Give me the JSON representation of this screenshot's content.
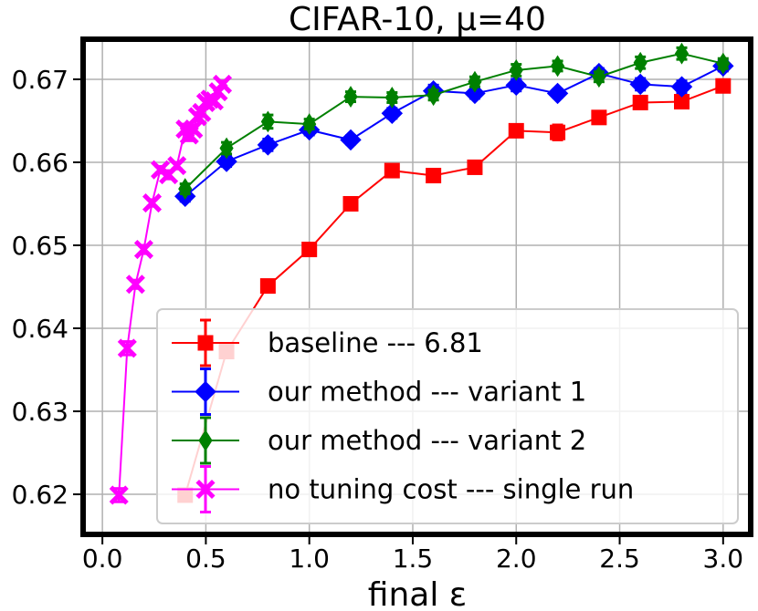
{
  "chart_data": {
    "type": "line",
    "title": "CIFAR-10, μ=40",
    "xlabel": "final ε",
    "ylabel": "",
    "xlim": [
      -0.08,
      3.12
    ],
    "ylim": [
      0.6155,
      0.6745
    ],
    "xticks": [
      "0.0",
      "0.5",
      "1.0",
      "1.5",
      "2.0",
      "2.5",
      "3.0"
    ],
    "xtick_values": [
      0.0,
      0.5,
      1.0,
      1.5,
      2.0,
      2.5,
      3.0
    ],
    "yticks": [
      "0.62",
      "0.63",
      "0.64",
      "0.65",
      "0.66",
      "0.67"
    ],
    "ytick_values": [
      0.62,
      0.63,
      0.64,
      0.65,
      0.66,
      0.67
    ],
    "grid": true,
    "legend_position": "lower-right",
    "series": [
      {
        "name": "baseline --- 6.81",
        "color": "#ff0000",
        "marker": "square",
        "x": [
          0.4,
          0.6,
          0.8,
          1.0,
          1.2,
          1.4,
          1.6,
          1.8,
          2.0,
          2.2,
          2.4,
          2.6,
          2.8,
          3.0
        ],
        "y": [
          0.6199,
          0.6372,
          0.6451,
          0.6495,
          0.655,
          0.659,
          0.6584,
          0.6594,
          0.6638,
          0.6636,
          0.6654,
          0.6672,
          0.6673,
          0.6692
        ],
        "err": [
          0.0007,
          0.0007,
          0.0006,
          0.0006,
          0.0005,
          0.0005,
          0.0006,
          0.0005,
          0.0007,
          0.0009,
          0.0007,
          0.0007,
          0.0007,
          0.0006
        ]
      },
      {
        "name": "our method --- variant 1",
        "color": "#0000ff",
        "marker": "diamond",
        "x": [
          0.4,
          0.6,
          0.8,
          1.0,
          1.2,
          1.4,
          1.6,
          1.8,
          2.0,
          2.2,
          2.4,
          2.6,
          2.8,
          3.0
        ],
        "y": [
          0.6559,
          0.6601,
          0.6621,
          0.6639,
          0.6627,
          0.6659,
          0.6686,
          0.6683,
          0.6693,
          0.6683,
          0.6707,
          0.6694,
          0.6691,
          0.6716
        ],
        "err": [
          0.0006,
          0.0006,
          0.0007,
          0.0006,
          0.0005,
          0.0006,
          0.0007,
          0.0006,
          0.0007,
          0.0005,
          0.0006,
          0.0007,
          0.0007,
          0.0006
        ]
      },
      {
        "name": "our method --- variant 2",
        "color": "#008000",
        "marker": "thin-diamond",
        "x": [
          0.4,
          0.6,
          0.8,
          1.0,
          1.2,
          1.4,
          1.6,
          1.8,
          2.0,
          2.2,
          2.4,
          2.6,
          2.8,
          3.0
        ],
        "y": [
          0.6568,
          0.6617,
          0.6649,
          0.6646,
          0.6679,
          0.6678,
          0.6681,
          0.6697,
          0.6711,
          0.6716,
          0.6703,
          0.672,
          0.6731,
          0.6719
        ],
        "err": [
          0.0006,
          0.0007,
          0.0008,
          0.0006,
          0.0006,
          0.0006,
          0.0006,
          0.0006,
          0.0007,
          0.0006,
          0.0006,
          0.0007,
          0.0007,
          0.0006
        ]
      },
      {
        "name": "no tuning cost --- single run",
        "color": "#ff00ff",
        "marker": "x",
        "x": [
          0.08,
          0.12,
          0.16,
          0.2,
          0.24,
          0.28,
          0.32,
          0.36,
          0.4,
          0.42,
          0.44,
          0.46,
          0.48,
          0.5,
          0.52,
          0.54,
          0.56,
          0.58
        ],
        "y": [
          0.6199,
          0.6376,
          0.6453,
          0.6495,
          0.6551,
          0.6591,
          0.6585,
          0.6596,
          0.664,
          0.6633,
          0.664,
          0.6655,
          0.666,
          0.6672,
          0.6676,
          0.6674,
          0.6685,
          0.6694
        ],
        "err": [
          0.0008,
          0.0008,
          0.0005,
          0.0005,
          0.0004,
          0.0004,
          0.0005,
          0.0004,
          0.0006,
          0.0007,
          0.0005,
          0.0005,
          0.0005,
          0.0005,
          0.0004,
          0.0004,
          0.0004,
          0.0004
        ]
      }
    ]
  }
}
